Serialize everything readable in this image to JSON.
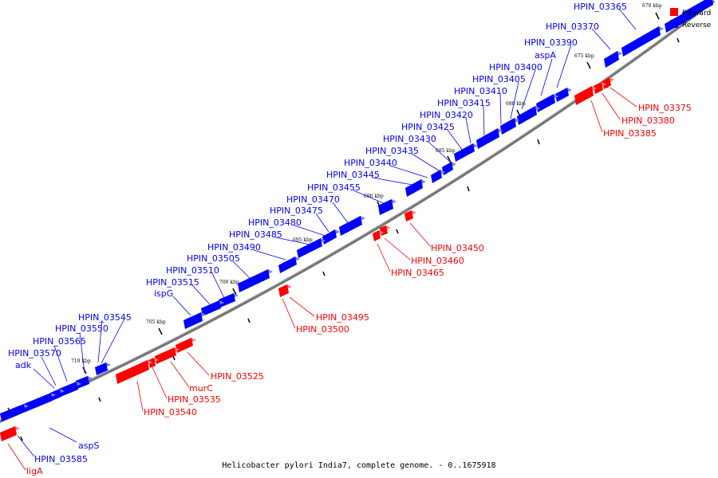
{
  "caption": "Helicobacter pylori India7, complete genome. - 0..1675918",
  "colors": {
    "forward": "#ff0000",
    "reverse": "#0000ff",
    "backbone": "#777777"
  },
  "legend": [
    {
      "label": "Forward",
      "color": "#ff0000"
    },
    {
      "label": "Reverse",
      "color": "#0000ff"
    }
  ],
  "tick_labels": [
    "670 kbp",
    "675 kbp",
    "680 kbp",
    "685 kbp",
    "690 kbp",
    "695 kbp",
    "700 kbp",
    "705 kbp",
    "710 kbp"
  ],
  "reverse_labels": [
    "HPIN_03365",
    "HPIN_03370",
    "HPIN_03390",
    "aspA",
    "HPIN_03400",
    "HPIN_03405",
    "HPIN_03410",
    "HPIN_03415",
    "HPIN_03420",
    "HPIN_03425",
    "HPIN_03430",
    "HPIN_03435",
    "HPIN_03440",
    "HPIN_03445",
    "HPIN_03455",
    "HPIN_03470",
    "HPIN_03475",
    "HPIN_03480",
    "HPIN_03485",
    "HPIN_03490",
    "HPIN_03505",
    "HPIN_03510",
    "HPIN_03515",
    "ispG",
    "HPIN_03545",
    "HPIN_03550",
    "HPIN_03565",
    "HPIN_03570",
    "adk",
    "aspS",
    "HPIN_03585"
  ],
  "forward_labels": [
    "HPIN_03375",
    "HPIN_03380",
    "HPIN_03385",
    "HPIN_03450",
    "HPIN_03460",
    "HPIN_03465",
    "HPIN_03495",
    "HPIN_03500",
    "HPIN_03525",
    "murC",
    "HPIN_03535",
    "HPIN_03540",
    "ligA"
  ]
}
